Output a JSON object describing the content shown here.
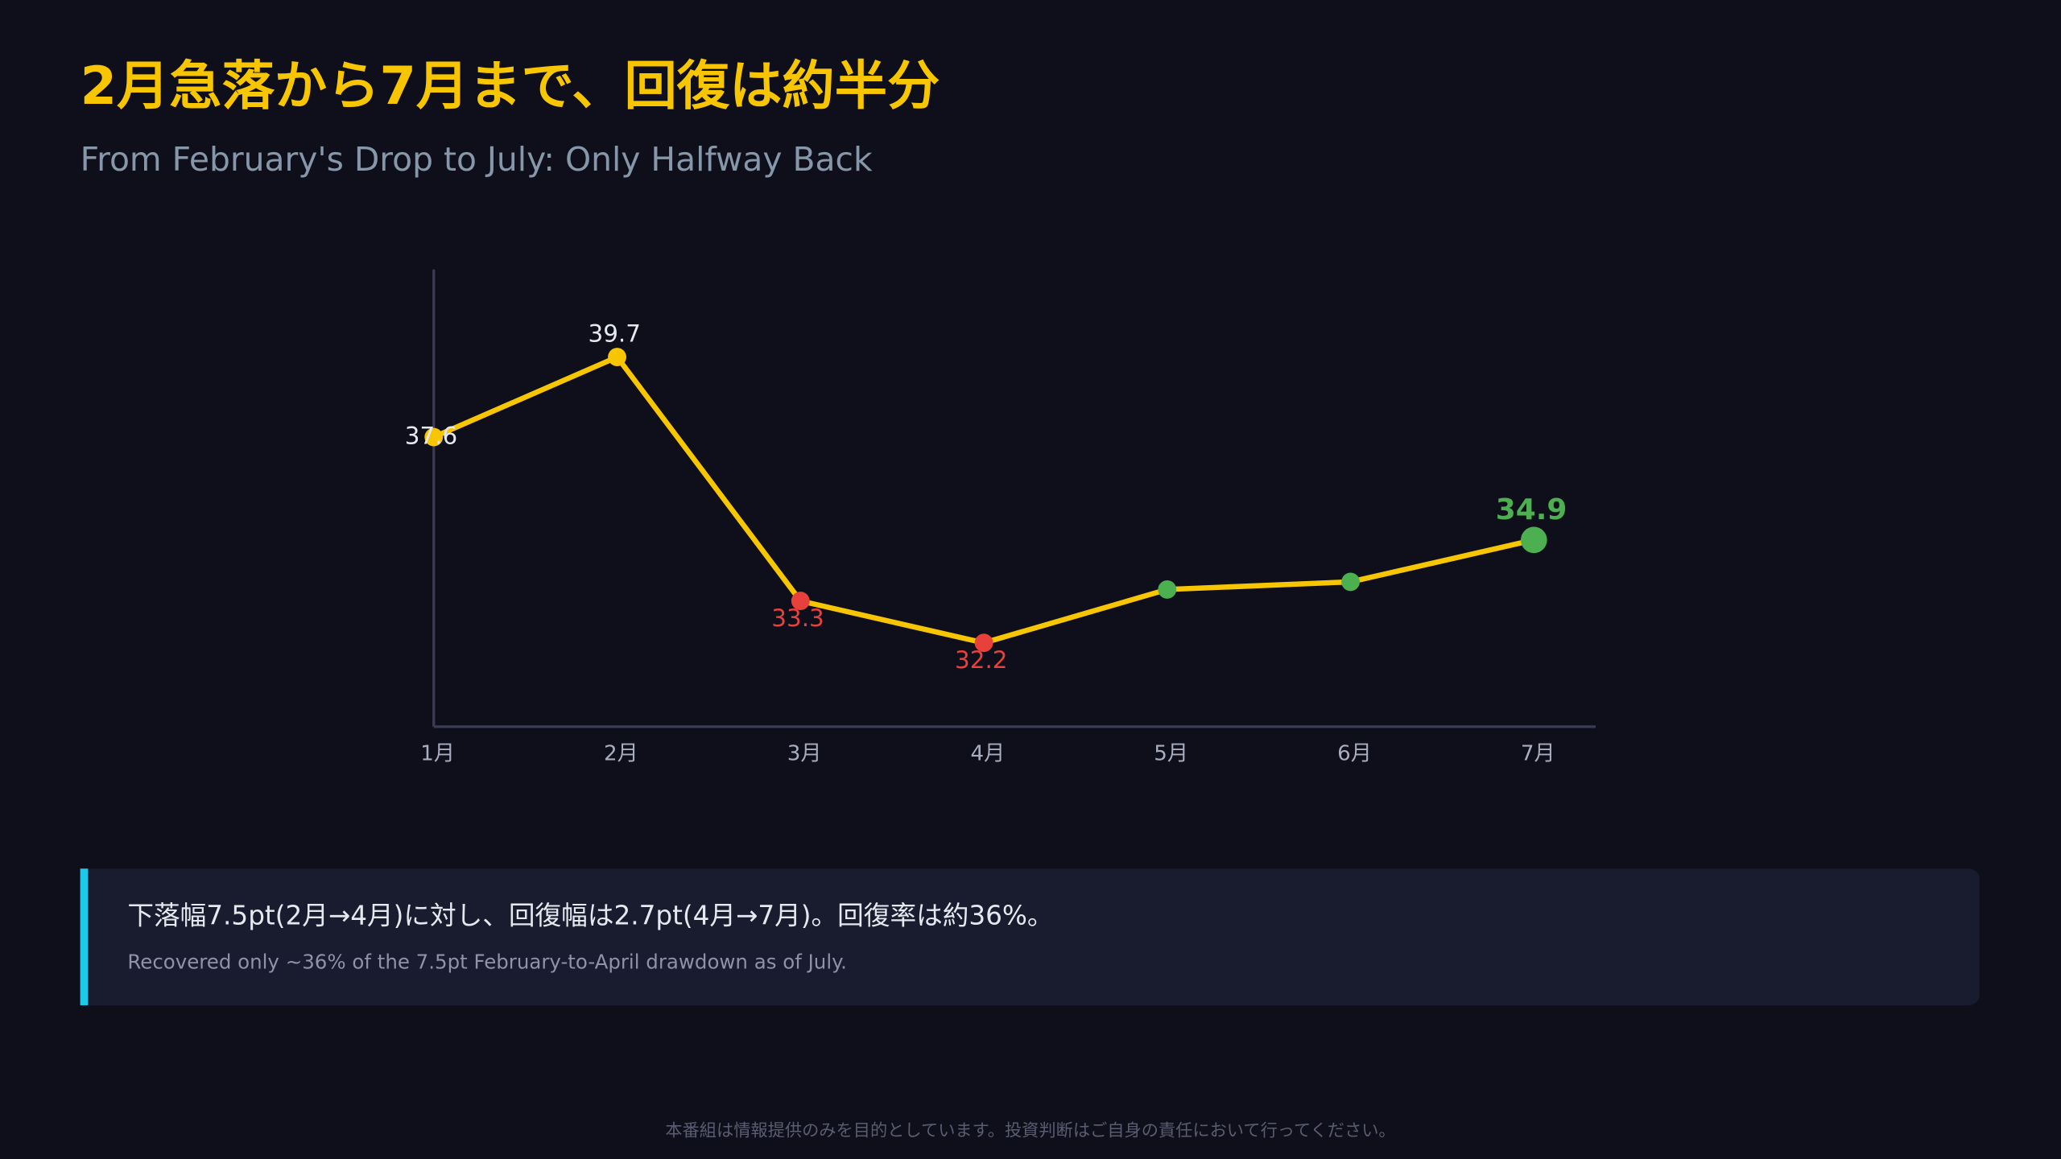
{
  "chart_data": {
    "type": "line",
    "title": "2月急落から7月まで、回復は約半分",
    "subtitle": "From February's Drop to July: Only Halfway Back",
    "categories": [
      "1月",
      "2月",
      "3月",
      "4月",
      "5月",
      "6月",
      "7月"
    ],
    "values": [
      37.6,
      39.7,
      33.3,
      32.2,
      33.6,
      33.8,
      34.9
    ],
    "value_labels": [
      "37.6",
      "39.7",
      "33.3",
      "32.2",
      null,
      null,
      "34.9"
    ],
    "color": "#f7c600",
    "point_colors": [
      "#f7c600",
      "#f7c600",
      "#e8413c",
      "#e8413c",
      "#4caf50",
      "#4caf50",
      "#4caf50"
    ],
    "ylim": [
      30,
      42
    ]
  },
  "note": {
    "text": "下落幅7.5pt(2月→4月)に対し、回復幅は2.7pt(4月→7月)。回復率は約36%。",
    "subtext": "Recovered only ~36% of the 7.5pt February-to-April drawdown as of July."
  },
  "footer": "本番組は情報提供のみを目的としています。投資判断はご自身の責任において行ってください。"
}
